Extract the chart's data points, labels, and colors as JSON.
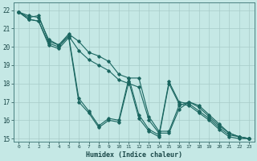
{
  "title": "",
  "xlabel": "Humidex (Indice chaleur)",
  "ylabel": "",
  "bg_color": "#c5e8e5",
  "grid_color": "#a8ccc9",
  "line_color": "#1a6660",
  "xlim": [
    -0.5,
    23.5
  ],
  "ylim": [
    14.85,
    22.4
  ],
  "xticks": [
    0,
    1,
    2,
    3,
    4,
    5,
    6,
    7,
    8,
    9,
    10,
    11,
    12,
    13,
    14,
    15,
    16,
    17,
    18,
    19,
    20,
    21,
    22,
    23
  ],
  "yticks": [
    15,
    16,
    17,
    18,
    19,
    20,
    21,
    22
  ],
  "series": [
    {
      "x": [
        0,
        1,
        2,
        3,
        4,
        5,
        6,
        7,
        8,
        9,
        10,
        11,
        12,
        13,
        14,
        15,
        16,
        17,
        18,
        19,
        20,
        21,
        22,
        23
      ],
      "y": [
        21.9,
        21.6,
        21.7,
        20.3,
        20.1,
        20.7,
        20.3,
        19.7,
        19.5,
        19.2,
        18.5,
        18.3,
        18.3,
        16.2,
        15.4,
        15.4,
        16.8,
        17.0,
        16.8,
        16.3,
        15.8,
        15.3,
        15.1,
        15.0
      ]
    },
    {
      "x": [
        0,
        1,
        2,
        3,
        4,
        5,
        6,
        7,
        8,
        9,
        10,
        11,
        12,
        13,
        14,
        15,
        16,
        17,
        18,
        19,
        20,
        21,
        22,
        23
      ],
      "y": [
        21.9,
        21.7,
        21.6,
        20.4,
        20.1,
        20.6,
        19.8,
        19.3,
        19.0,
        18.7,
        18.2,
        18.0,
        17.8,
        16.0,
        15.3,
        15.3,
        16.6,
        17.0,
        16.7,
        16.2,
        15.7,
        15.3,
        15.1,
        15.0
      ]
    },
    {
      "x": [
        0,
        1,
        2,
        3,
        4,
        5,
        6,
        7,
        8,
        9,
        10,
        11,
        12,
        13,
        14,
        15,
        16,
        17,
        18,
        19,
        20,
        21,
        22,
        23
      ],
      "y": [
        21.9,
        21.5,
        21.4,
        20.2,
        20.0,
        20.6,
        17.2,
        16.5,
        15.7,
        16.1,
        16.0,
        18.3,
        16.3,
        15.5,
        15.2,
        18.1,
        17.0,
        16.9,
        16.5,
        16.1,
        15.6,
        15.2,
        15.1,
        15.0
      ]
    },
    {
      "x": [
        0,
        1,
        2,
        3,
        4,
        5,
        6,
        7,
        8,
        9,
        10,
        11,
        12,
        13,
        14,
        15,
        16,
        17,
        18,
        19,
        20,
        21,
        22,
        23
      ],
      "y": [
        21.9,
        21.5,
        21.4,
        20.1,
        19.9,
        20.5,
        17.0,
        16.4,
        15.6,
        16.0,
        15.9,
        18.1,
        16.1,
        15.4,
        15.1,
        18.0,
        16.9,
        16.8,
        16.4,
        16.0,
        15.5,
        15.1,
        15.0,
        15.0
      ]
    }
  ]
}
